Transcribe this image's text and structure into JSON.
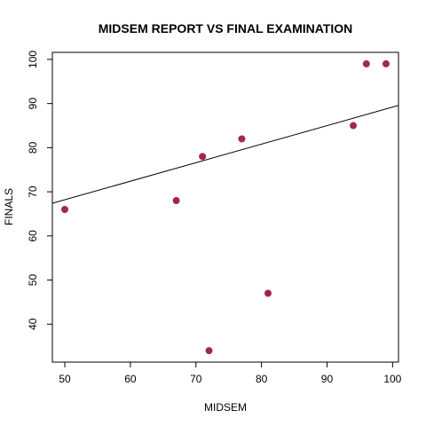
{
  "chart_data": {
    "type": "scatter",
    "title": "MIDSEM REPORT VS FINAL EXAMINATION",
    "xlabel": "MIDSEM",
    "ylabel": "FINALS",
    "xlim": [
      48.1,
      100.9
    ],
    "ylim": [
      31.4,
      101.6
    ],
    "x_ticks": [
      50,
      60,
      70,
      80,
      90,
      100
    ],
    "y_ticks": [
      40,
      50,
      60,
      70,
      80,
      90,
      100
    ],
    "grid": false,
    "legend": "none",
    "point_color": "#A3264F",
    "line_color": "#000000",
    "points": [
      {
        "x": 50,
        "y": 66
      },
      {
        "x": 67,
        "y": 68
      },
      {
        "x": 71,
        "y": 78
      },
      {
        "x": 72,
        "y": 34
      },
      {
        "x": 77,
        "y": 82
      },
      {
        "x": 81,
        "y": 47
      },
      {
        "x": 94,
        "y": 85
      },
      {
        "x": 96,
        "y": 99
      },
      {
        "x": 99,
        "y": 99
      }
    ],
    "fit_line": {
      "intercept": 47.2,
      "slope": 0.42
    }
  }
}
